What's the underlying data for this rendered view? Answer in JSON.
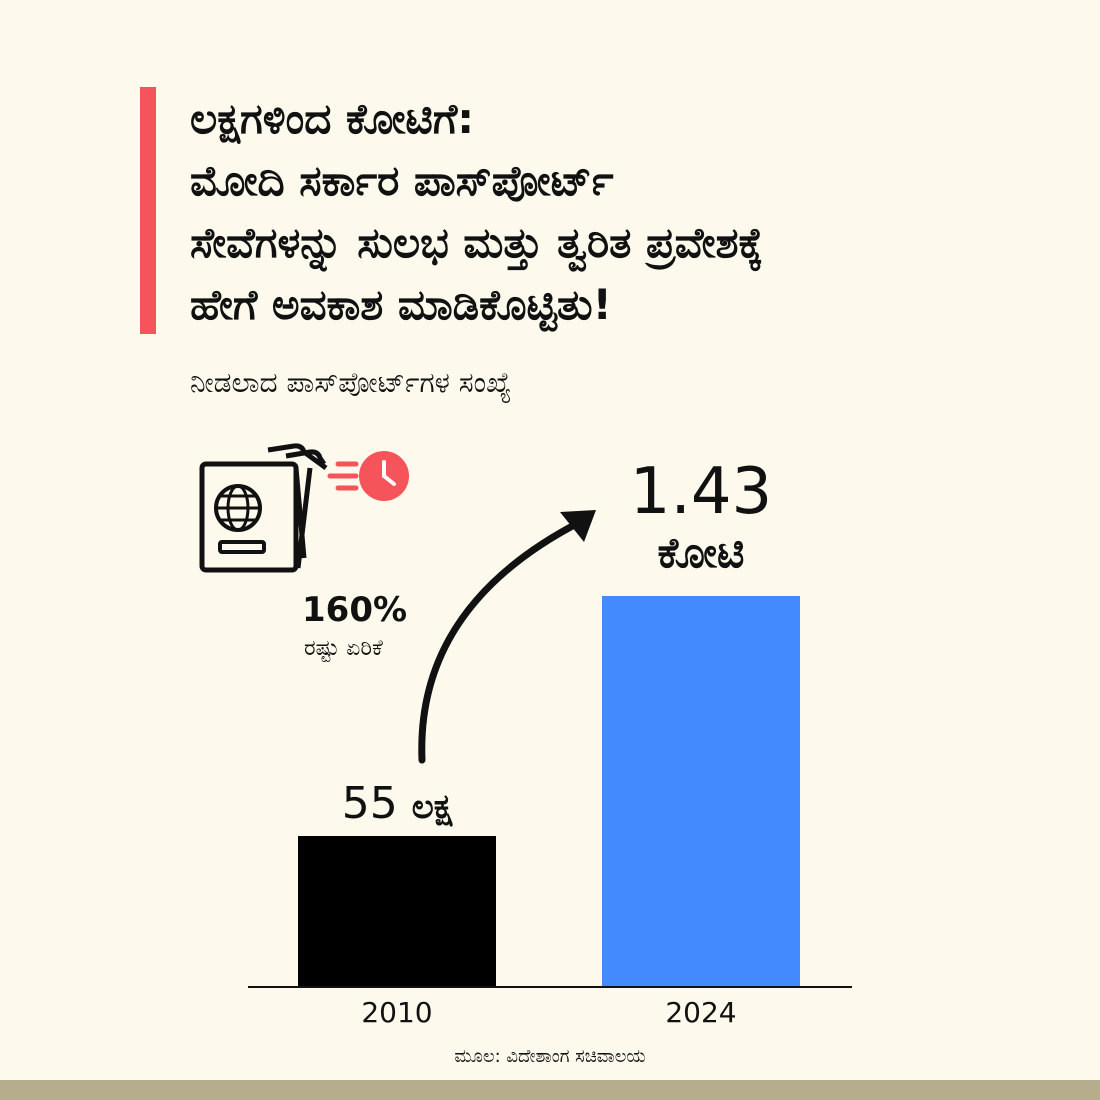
{
  "title": {
    "lines": [
      "ಲಕ್ಷಗಳಿಂದ ಕೋಟಿಗೆ:",
      "ಮೋದಿ ಸರ್ಕಾರ ಪಾಸ್‌ಪೋರ್ಟ್",
      "ಸೇವೆಗಳನ್ನು ಸುಲಭ ಮತ್ತು ತ್ವರಿತ ಪ್ರವೇಶಕ್ಕೆ",
      "ಹೇಗೆ ಅವಕಾಶ ಮಾಡಿಕೊಟ್ಟಿತು!"
    ]
  },
  "subtitle": "ನೀಡಲಾದ ಪಾಸ್‌ಪೋರ್ಟ್‌ಗಳ ಸಂಖ್ಯೆ",
  "growth": {
    "percent": "160%",
    "label": "ರಷ್ಟು ಏರಿಕೆ"
  },
  "source": "ಮೂಲ: ವಿದೇಶಾಂಗ ಸಚಿವಾಲಯ",
  "colors": {
    "accent": "#f4545a",
    "bar_2010": "#000000",
    "bar_2024": "#448aff",
    "background": "#fdf9ec",
    "footer": "#b6ad8c"
  },
  "icons": [
    "passport-icon",
    "clock-icon",
    "arrow-up-icon"
  ],
  "chart_data": {
    "type": "bar",
    "categories": [
      "2010",
      "2024"
    ],
    "values": [
      5500000,
      14300000
    ],
    "value_labels": [
      {
        "number": "55",
        "unit": "ಲಕ್ಷ"
      },
      {
        "number": "1.43",
        "unit": "ಕೋಟಿ"
      }
    ],
    "ylim": [
      0,
      14300000
    ],
    "grid": false,
    "legend": "none"
  }
}
